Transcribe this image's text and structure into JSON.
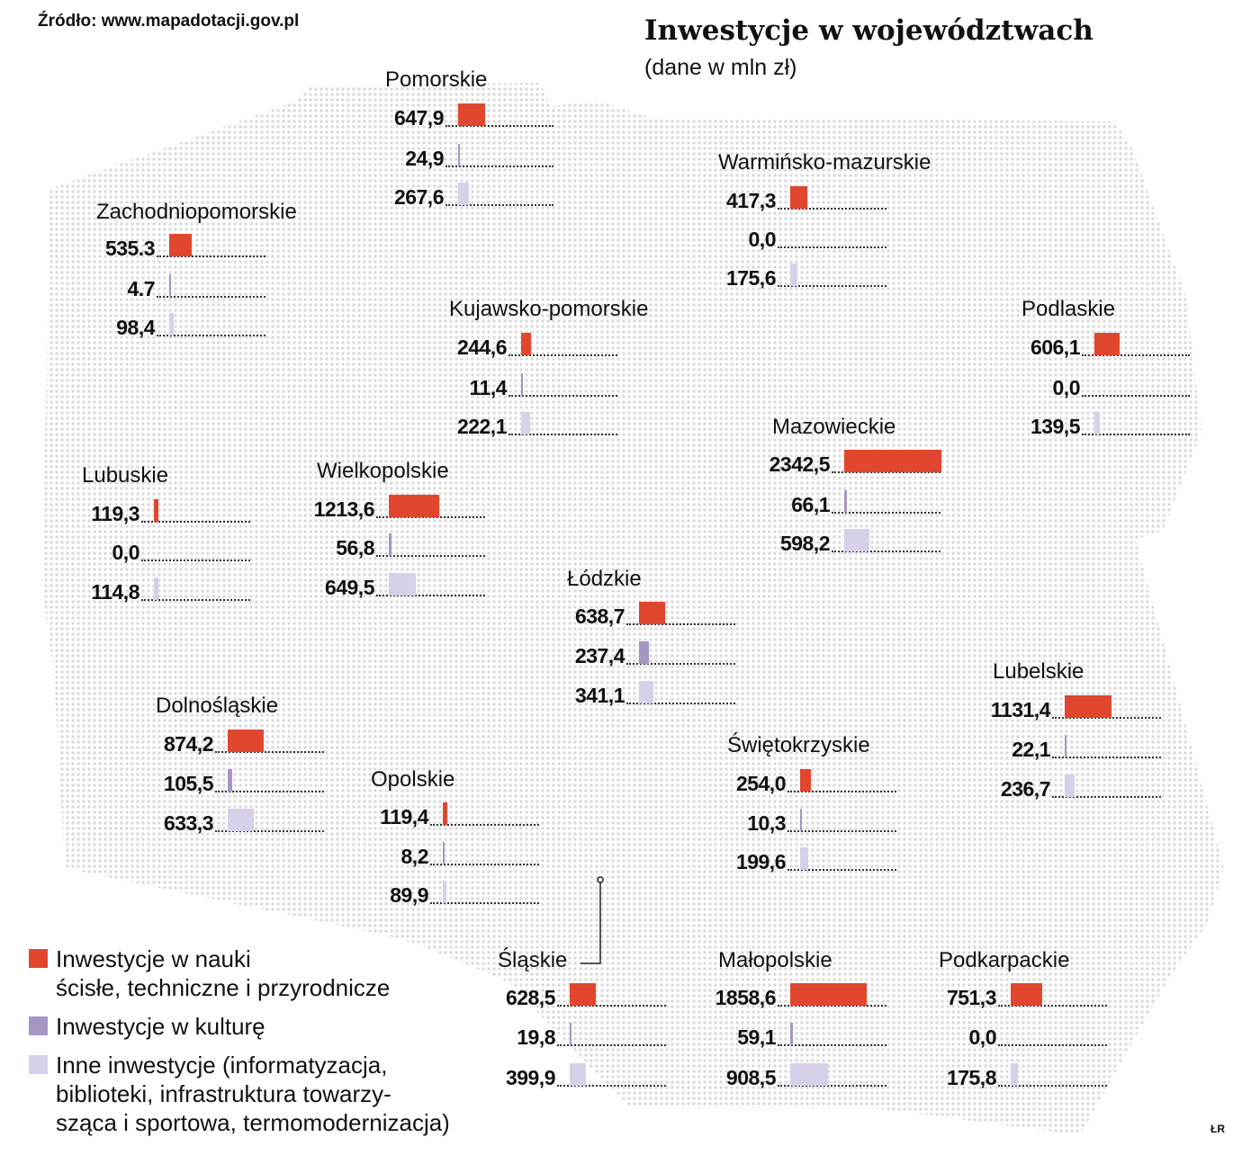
{
  "source": "Źródło: www.mapadotacji.gov.pl",
  "credit": "ŁR",
  "colors": {
    "nauki": "#e0472e",
    "kultura": "#a597c3",
    "inne": "#d8d0e8",
    "map_dots": "#d9d9d9"
  },
  "chart_data": {
    "type": "bar",
    "title": "Inwestycje w województwach",
    "subtitle": "(dane w mln zł)",
    "series": [
      {
        "name": "Inwestycje w nauki ścisłe, techniczne i przyrodnicze",
        "legend_lines": [
          "Inwestycje w nauki",
          "ścisłe, techniczne i przyrodnicze"
        ]
      },
      {
        "name": "Inwestycje w kulturę",
        "legend_lines": [
          "Inwestycje w kulturę"
        ]
      },
      {
        "name": "Inne inwestycje (informatyzacja, biblioteki, infrastruktura towarzysząca i sportowa, termomodernizacja)",
        "legend_lines": [
          "Inne inwestycje (informatyzacja,",
          "biblioteki, infrastruktura towarzy-",
          "sząca i sportowa, termomodernizacja)"
        ]
      }
    ],
    "regions": [
      {
        "name": "Pomorskie",
        "values": [
          "647,9",
          "24,9",
          "267,6"
        ]
      },
      {
        "name": "Zachodniopomorskie",
        "values": [
          "535.3",
          "4.7",
          "98,4"
        ]
      },
      {
        "name": "Warmińsko-mazurskie",
        "values": [
          "417,3",
          "0,0",
          "175,6"
        ]
      },
      {
        "name": "Kujawsko-pomorskie",
        "values": [
          "244,6",
          "11,4",
          "222,1"
        ]
      },
      {
        "name": "Podlaskie",
        "values": [
          "606,1",
          "0,0",
          "139,5"
        ]
      },
      {
        "name": "Mazowieckie",
        "values": [
          "2342,5",
          "66,1",
          "598,2"
        ]
      },
      {
        "name": "Lubuskie",
        "values": [
          "119,3",
          "0,0",
          "114,8"
        ]
      },
      {
        "name": "Wielkopolskie",
        "values": [
          "1213,6",
          "56,8",
          "649,5"
        ]
      },
      {
        "name": "Łódzkie",
        "values": [
          "638,7",
          "237,4",
          "341,1"
        ]
      },
      {
        "name": "Lubelskie",
        "values": [
          "1131,4",
          "22,1",
          "236,7"
        ]
      },
      {
        "name": "Dolnośląskie",
        "values": [
          "874,2",
          "105,5",
          "633,3"
        ]
      },
      {
        "name": "Świętokrzyskie",
        "values": [
          "254,0",
          "10,3",
          "199,6"
        ]
      },
      {
        "name": "Opolskie",
        "values": [
          "119,4",
          "8,2",
          "89,9"
        ]
      },
      {
        "name": "Śląskie",
        "values": [
          "628,5",
          "19,8",
          "399,9"
        ]
      },
      {
        "name": "Małopolskie",
        "values": [
          "1858,6",
          "59,1",
          "908,5"
        ]
      },
      {
        "name": "Podkarpackie",
        "values": [
          "751,3",
          "0,0",
          "175,8"
        ]
      }
    ]
  }
}
